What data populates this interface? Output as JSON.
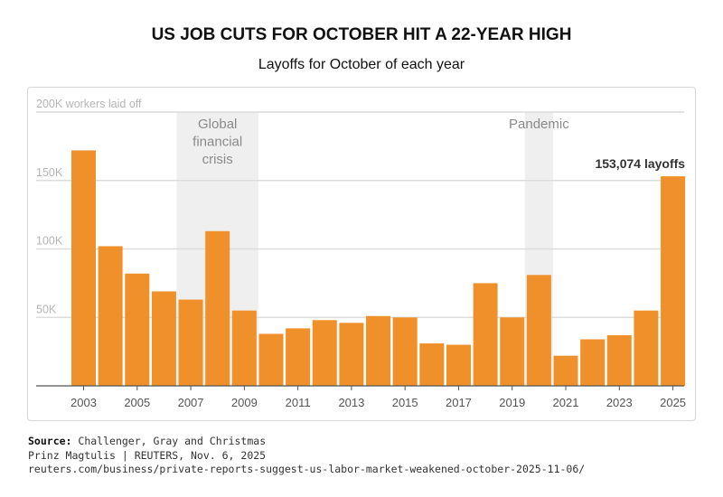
{
  "chart_data": {
    "type": "bar",
    "title": "US JOB CUTS FOR OCTOBER HIT A 22-YEAR HIGH",
    "subtitle": "Layoffs for October of each year",
    "x": [
      2003,
      2004,
      2005,
      2006,
      2007,
      2008,
      2009,
      2010,
      2011,
      2012,
      2013,
      2014,
      2015,
      2016,
      2017,
      2018,
      2019,
      2020,
      2021,
      2022,
      2023,
      2024,
      2025
    ],
    "values": [
      172000,
      102000,
      82000,
      69000,
      63000,
      113000,
      55000,
      38000,
      42000,
      48000,
      46000,
      51000,
      50000,
      31000,
      30000,
      75000,
      50000,
      81000,
      22000,
      34000,
      37000,
      55000,
      153074
    ],
    "x_tick_labels": [
      "2003",
      "2005",
      "2007",
      "2009",
      "2011",
      "2013",
      "2015",
      "2017",
      "2019",
      "2021",
      "2023",
      "2025"
    ],
    "y_tick_labels": [
      "50K",
      "100K",
      "150K",
      "200K workers laid off"
    ],
    "y_ticks": [
      50000,
      100000,
      150000,
      200000
    ],
    "ylim": [
      0,
      200000
    ],
    "grid": true,
    "bar_color": "#f0902a",
    "shade_color": "#efefef",
    "annotations": {
      "last_value_label": "153,074 layoffs",
      "shaded_periods": [
        {
          "label_lines": [
            "Global",
            "financial",
            "crisis"
          ],
          "from": 2007,
          "to": 2009
        },
        {
          "label_lines": [
            "Pandemic"
          ],
          "from": 2020,
          "to": 2020
        }
      ]
    }
  },
  "footer": {
    "source_label": "Source:",
    "source": "Challenger, Gray and Christmas",
    "credit": "Prinz Magtulis | REUTERS, Nov. 6, 2025",
    "url": "reuters.com/business/private-reports-suggest-us-labor-market-weakened-october-2025-11-06/"
  }
}
